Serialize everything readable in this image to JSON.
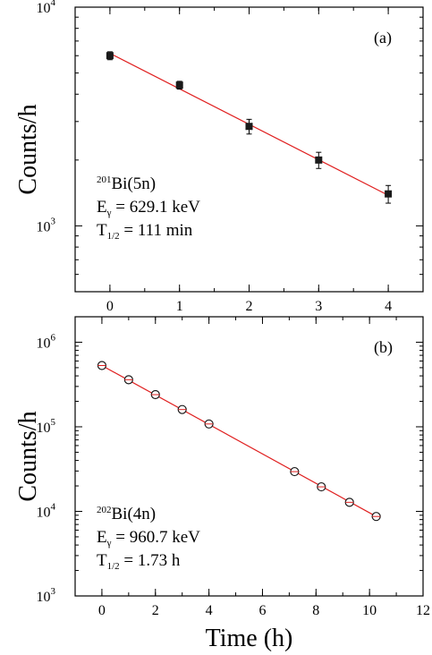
{
  "chart_data": [
    {
      "type": "scatter",
      "panel_label": "(a)",
      "ylabel": "Counts/h",
      "yscale": "log",
      "xlim": [
        -0.5,
        4.5
      ],
      "ylim": [
        500,
        10000
      ],
      "xticks": [
        "0",
        "1",
        "2",
        "3",
        "4"
      ],
      "ytick_labels": [
        {
          "base": "10",
          "exp": "3",
          "value": 1000
        },
        {
          "base": "10",
          "exp": "4",
          "value": 10000
        }
      ],
      "annotation": {
        "nuclide_mass": "201",
        "nuclide": "Bi(5n)",
        "energy_sym": "E",
        "energy_sub": "γ",
        "energy_val": " = 629.1 keV",
        "halflife_sym": "T",
        "halflife_sub": "1/2",
        "halflife_val": " = 111 min"
      },
      "marker": "square",
      "marker_color": "#1a1a1a",
      "fit_color": "#e02020",
      "points": [
        {
          "x": 0,
          "y": 6000,
          "err": 250
        },
        {
          "x": 1,
          "y": 4400,
          "err": 180
        },
        {
          "x": 2,
          "y": 2850,
          "err": 220
        },
        {
          "x": 3,
          "y": 2000,
          "err": 170
        },
        {
          "x": 4,
          "y": 1400,
          "err": 130
        }
      ],
      "fit_line": {
        "x": [
          0,
          4
        ],
        "y": [
          6150,
          1380
        ]
      }
    },
    {
      "type": "scatter",
      "panel_label": "(b)",
      "ylabel": "Counts/h",
      "xlabel": "Time (h)",
      "yscale": "log",
      "xlim": [
        -1,
        12
      ],
      "ylim": [
        1000,
        2000000
      ],
      "xticks": [
        "0",
        "2",
        "4",
        "6",
        "8",
        "10",
        "12"
      ],
      "ytick_labels": [
        {
          "base": "10",
          "exp": "3",
          "value": 1000
        },
        {
          "base": "10",
          "exp": "4",
          "value": 10000
        },
        {
          "base": "10",
          "exp": "5",
          "value": 100000
        },
        {
          "base": "10",
          "exp": "6",
          "value": 1000000
        }
      ],
      "annotation": {
        "nuclide_mass": "202",
        "nuclide": "Bi(4n)",
        "energy_sym": "E",
        "energy_sub": "γ",
        "energy_val": " = 960.7 keV",
        "halflife_sym": "T",
        "halflife_sub": "1/2",
        "halflife_val": " = 1.73 h"
      },
      "marker": "open-circle",
      "marker_color": "#1a1a1a",
      "fit_color": "#e02020",
      "points": [
        {
          "x": 0,
          "y": 530000
        },
        {
          "x": 1,
          "y": 360000
        },
        {
          "x": 2,
          "y": 240000
        },
        {
          "x": 3,
          "y": 160000
        },
        {
          "x": 4,
          "y": 108000
        },
        {
          "x": 7.2,
          "y": 29500
        },
        {
          "x": 8.2,
          "y": 19500
        },
        {
          "x": 9.25,
          "y": 12800
        },
        {
          "x": 10.25,
          "y": 8700
        }
      ],
      "fit_line": {
        "x": [
          0,
          10.25
        ],
        "y": [
          530000,
          8700
        ]
      }
    }
  ]
}
